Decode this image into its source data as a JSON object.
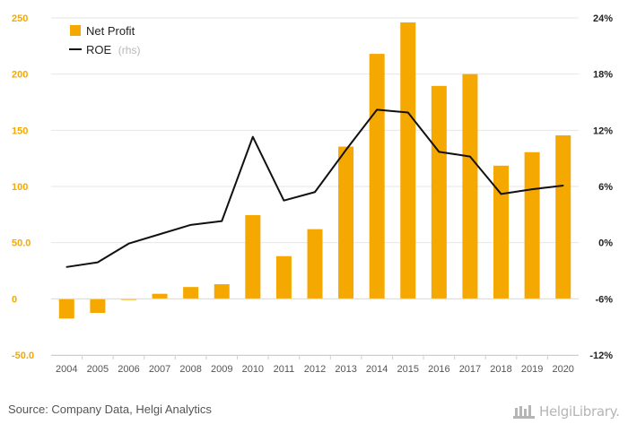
{
  "chart_data": {
    "type": "bar",
    "categories": [
      "2004",
      "2005",
      "2006",
      "2007",
      "2008",
      "2009",
      "2010",
      "2011",
      "2012",
      "2013",
      "2014",
      "2015",
      "2016",
      "2017",
      "2018",
      "2019",
      "2020"
    ],
    "series": [
      {
        "name": "Net Profit",
        "type": "bar",
        "axis": "left",
        "values": [
          -17.5,
          -12.5,
          -1.0,
          4.5,
          10.5,
          13.0,
          74.5,
          38.0,
          62.0,
          135.5,
          218.0,
          246.0,
          189.5,
          200.0,
          118.5,
          130.5,
          145.5
        ]
      },
      {
        "name": "ROE",
        "type": "line",
        "axis": "right",
        "values": [
          -2.6,
          -2.1,
          -0.1,
          0.9,
          1.9,
          2.3,
          11.3,
          4.5,
          5.4,
          9.9,
          14.2,
          13.9,
          9.7,
          9.2,
          5.2,
          5.7,
          6.1
        ]
      }
    ],
    "left_axis": {
      "ylim": [
        -50,
        250
      ],
      "ticks": [
        -50,
        0,
        50,
        100,
        150,
        200,
        250
      ],
      "tick_labels": [
        "-50.0",
        "0",
        "50.0",
        "100",
        "150",
        "200",
        "250"
      ]
    },
    "right_axis": {
      "ylim": [
        -12,
        24
      ],
      "ticks": [
        -12,
        -6,
        0,
        6,
        12,
        18,
        24
      ],
      "tick_labels": [
        "-12%",
        "-6%",
        "0%",
        "6%",
        "12%",
        "18%",
        "24%"
      ]
    },
    "legend": {
      "position": "top-left",
      "items": [
        {
          "label": "Net Profit",
          "sub": ""
        },
        {
          "label": "ROE",
          "sub": "(rhs)"
        }
      ]
    },
    "grid": true,
    "colors": {
      "bar": "#f5a800",
      "line": "#111111",
      "grid": "#e6e6e6"
    }
  },
  "footer": {
    "source": "Source: Company Data, Helgi Analytics",
    "logo_text": "HelgiLibrary."
  }
}
